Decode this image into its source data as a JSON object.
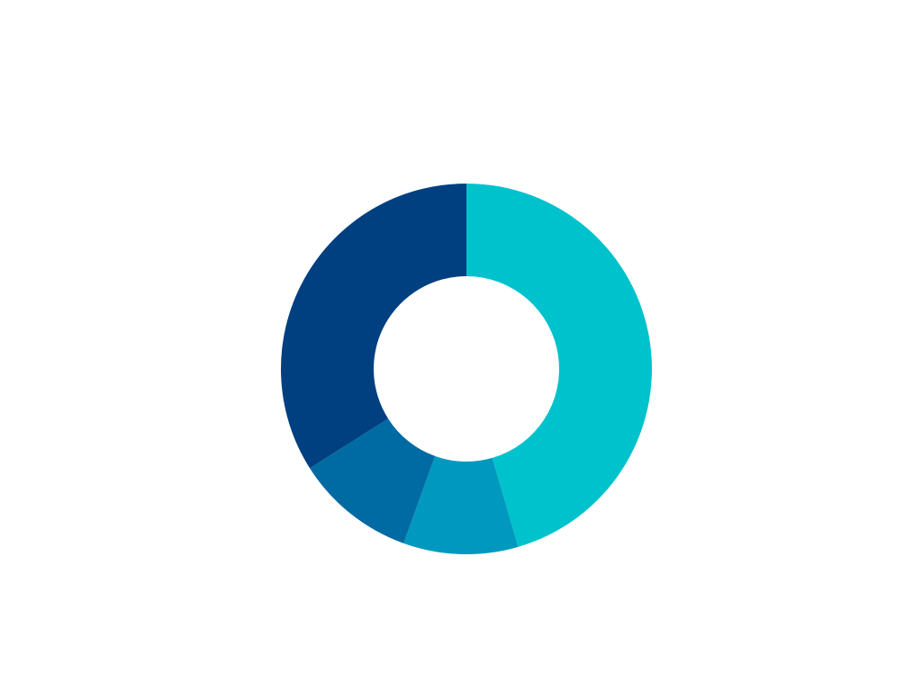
{
  "chart_data": {
    "type": "pie",
    "donut": true,
    "title": "",
    "legend": "none",
    "slices": [
      {
        "value": 45.5,
        "color": "#00c2cc"
      },
      {
        "value": 10.0,
        "color": "#0098bf"
      },
      {
        "value": 10.5,
        "color": "#006aa3"
      },
      {
        "value": 34.0,
        "color": "#003f80"
      }
    ],
    "start_angle_deg": 0,
    "direction": "clockwise"
  }
}
